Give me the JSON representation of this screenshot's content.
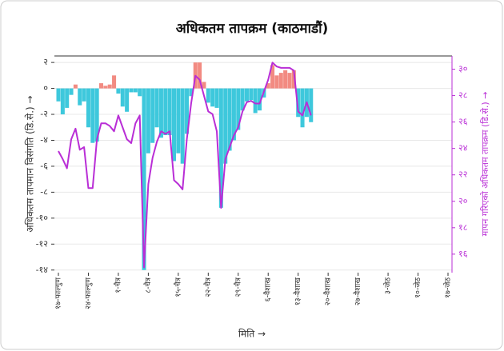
{
  "chart_data": {
    "type": "bar",
    "title": "अधिकतम तापक्रम (काठमाडौं)",
    "xlabel": "मिति →",
    "ylabel": "अधिकतम तापमान विसंगति (डि.से.) →",
    "y2label": "मापन गरिएको अधिकतम तापक्रम (डि.से.) →",
    "categories": [
      "१७-फाल्गुण",
      null,
      null,
      null,
      null,
      null,
      null,
      "२४-फाल्गुण",
      null,
      null,
      null,
      null,
      null,
      null,
      "१-चैत्र",
      null,
      null,
      null,
      null,
      null,
      null,
      "८-चैत्र",
      null,
      null,
      null,
      null,
      null,
      null,
      "१५-चैत्र",
      null,
      null,
      null,
      null,
      null,
      null,
      "२२-चैत्र",
      null,
      null,
      null,
      null,
      null,
      null,
      "२९-चैत्र",
      null,
      null,
      null,
      null,
      null,
      null,
      "६-वैशाख",
      null,
      null,
      null,
      null,
      null,
      null,
      "१३-वैशाख",
      null,
      null,
      null,
      null,
      null,
      null,
      "२०-वैशाख",
      null,
      null,
      null,
      null,
      null,
      null,
      "२७-वैशाख",
      null,
      null,
      null,
      null,
      null,
      null,
      "३-जेठ",
      null,
      null,
      null,
      null,
      null,
      null,
      "१०-जेठ",
      null,
      null,
      null,
      null,
      null,
      null,
      "१७-जेठ"
    ],
    "series": [
      {
        "type": "bar",
        "color": "#3ec8dc",
        "positive_color": "#f28b82",
        "values": [
          -1,
          -2,
          -1.5,
          -0.5,
          0.3,
          -1.3,
          -1,
          -3,
          -4.2,
          -4.1,
          0.4,
          0.2,
          0.3,
          1,
          -0.4,
          -1.4,
          -1.8,
          -0.3,
          -0.3,
          -0.6,
          -14,
          -5,
          -4.2,
          -3,
          -3.8,
          -3.6,
          -3.6,
          -5.6,
          -5,
          -5.8,
          -3.5,
          -0.6,
          2,
          2,
          0.5,
          -1.1,
          -1.4,
          -1.5,
          -9.2,
          -5.8,
          -4.8,
          -4,
          -3.2,
          -1.7,
          -1,
          -0.9,
          -1.9,
          -1.7,
          -0.7,
          0.4,
          1.8,
          1,
          1.2,
          1.4,
          1.2,
          1.4,
          -2.2,
          -3,
          -2.2,
          -2.6,
          null,
          null,
          null,
          null,
          null,
          null,
          null,
          null,
          null,
          null,
          null,
          null,
          null,
          null,
          null,
          null,
          null,
          null,
          null,
          null,
          null,
          null,
          null,
          null,
          null,
          null,
          null,
          null,
          null,
          null,
          null,
          null
        ]
      },
      {
        "type": "line",
        "axis": "y2",
        "color": "#b92ed6",
        "values": [
          23.8,
          23.2,
          22.5,
          24.7,
          25.5,
          23.9,
          24.1,
          21,
          21,
          24.7,
          25.9,
          25.9,
          25.7,
          25.3,
          26.5,
          25.6,
          24.7,
          24.4,
          25.9,
          26.5,
          15,
          21.3,
          23.3,
          24.5,
          25.3,
          25.1,
          25.3,
          21.6,
          21.3,
          20.9,
          24.7,
          27.4,
          29.5,
          29.2,
          28,
          26.8,
          26.6,
          25.3,
          19.5,
          23.2,
          24.1,
          25,
          25.6,
          26.8,
          27.5,
          27.6,
          27.4,
          27.4,
          28.3,
          29.2,
          30.5,
          30.2,
          30.1,
          30.1,
          30.1,
          29.9,
          26.8,
          26.5,
          27.5,
          26.5,
          null,
          null,
          null,
          null,
          null,
          null,
          null,
          null,
          null,
          null,
          null,
          null,
          null,
          null,
          null,
          null,
          null,
          null,
          null,
          null,
          null,
          null,
          null,
          null,
          null,
          null,
          null,
          null,
          null,
          null,
          null,
          null
        ]
      }
    ],
    "ylim": [
      -14.2,
      2.5
    ],
    "yticks": [
      {
        "value": 2,
        "label": "२"
      },
      {
        "value": 0,
        "label": "०"
      },
      {
        "value": -2,
        "label": "-२"
      },
      {
        "value": -4,
        "label": "-४"
      },
      {
        "value": -6,
        "label": "-६"
      },
      {
        "value": -8,
        "label": "-८"
      },
      {
        "value": -10,
        "label": "-१०"
      },
      {
        "value": -12,
        "label": "-१२"
      },
      {
        "value": -14,
        "label": "-१४"
      }
    ],
    "y2lim": [
      14.6,
      31.0
    ],
    "y2ticks": [
      {
        "value": 30,
        "label": "३०"
      },
      {
        "value": 28,
        "label": "२८"
      },
      {
        "value": 26,
        "label": "२६"
      },
      {
        "value": 24,
        "label": "२४"
      },
      {
        "value": 22,
        "label": "२२"
      },
      {
        "value": 20,
        "label": "२०"
      },
      {
        "value": 18,
        "label": "१८"
      },
      {
        "value": 16,
        "label": "१६"
      }
    ],
    "grid": true
  }
}
